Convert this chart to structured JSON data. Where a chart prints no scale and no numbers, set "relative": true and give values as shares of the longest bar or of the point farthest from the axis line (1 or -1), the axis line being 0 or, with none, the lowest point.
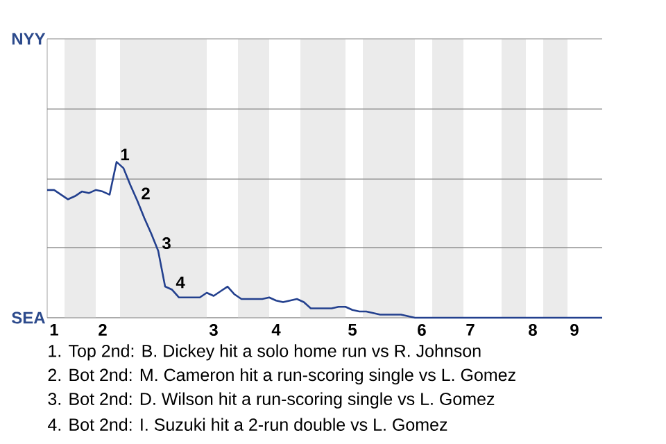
{
  "chart_data": {
    "type": "line",
    "relative": true,
    "categories": [
      null,
      "1",
      null,
      null,
      null,
      null,
      null,
      null,
      "2",
      null,
      null,
      null,
      null,
      null,
      null,
      null,
      null,
      null,
      null,
      null,
      null,
      null,
      null,
      null,
      "3",
      null,
      null,
      null,
      null,
      null,
      null,
      null,
      null,
      "4",
      null,
      null,
      null,
      null,
      null,
      null,
      null,
      null,
      null,
      null,
      "5",
      null,
      null,
      null,
      null,
      null,
      null,
      null,
      null,
      null,
      "6",
      null,
      null,
      null,
      null,
      null,
      null,
      "7",
      null,
      null,
      null,
      null,
      null,
      null,
      null,
      null,
      "8",
      null,
      null,
      null,
      null,
      null,
      "9",
      null,
      null,
      null,
      null
    ],
    "series": [
      {
        "color": "#23408e",
        "values": [
          0.82,
          0.82,
          0.79,
          0.76,
          0.78,
          0.81,
          0.8,
          0.82,
          0.81,
          0.79,
          1,
          0.96,
          0.85,
          0.75,
          0.64,
          0.54,
          0.43,
          0.2,
          0.18,
          0.13,
          0.13,
          0.13,
          0.13,
          0.16,
          0.14,
          0.17,
          0.2,
          0.15,
          0.12,
          0.12,
          0.12,
          0.12,
          0.13,
          0.11,
          0.1,
          0.11,
          0.12,
          0.1,
          0.06,
          0.06,
          0.06,
          0.06,
          0.07,
          0.07,
          0.05,
          0.04,
          0.04,
          0.03,
          0.02,
          0.02,
          0.02,
          0.02,
          0.01,
          0,
          0,
          0,
          0,
          0,
          0,
          0,
          0,
          0,
          0,
          0,
          0,
          0,
          0,
          0,
          0,
          0,
          0,
          0,
          0,
          0,
          0,
          0,
          0,
          0,
          0,
          0,
          0
        ]
      }
    ],
    "marker": "none",
    "line_style": "solid",
    "ref_lines": [
      {
        "axis": "y",
        "value": 0,
        "label": "SEA",
        "color": "#888888"
      },
      {
        "axis": "y",
        "value": 0.45,
        "color": "#888888"
      },
      {
        "axis": "y",
        "value": 0.89,
        "color": "#888888"
      },
      {
        "axis": "y",
        "value": 1.34,
        "color": "#888888"
      },
      {
        "axis": "y",
        "value": 1.79,
        "label": "NYY",
        "color": "#888888"
      }
    ],
    "annotations": [
      {
        "text": "1",
        "y": 1
      },
      "2",
      {
        "text": "3",
        "y": 0.43
      },
      {
        "text": "4",
        "y": 0.18
      },
      "1. Top 2nd: B. Dickey hit a solo home run vs R. Johnson",
      "2. Bot 2nd: M. Cameron hit a run-scoring single vs L. Gomez",
      "3. Bot 2nd: D. Wilson hit a run-scoring single vs L. Gomez",
      "4. Bot 2nd: I. Suzuki hit a 2-run double vs L. Gomez"
    ]
  }
}
